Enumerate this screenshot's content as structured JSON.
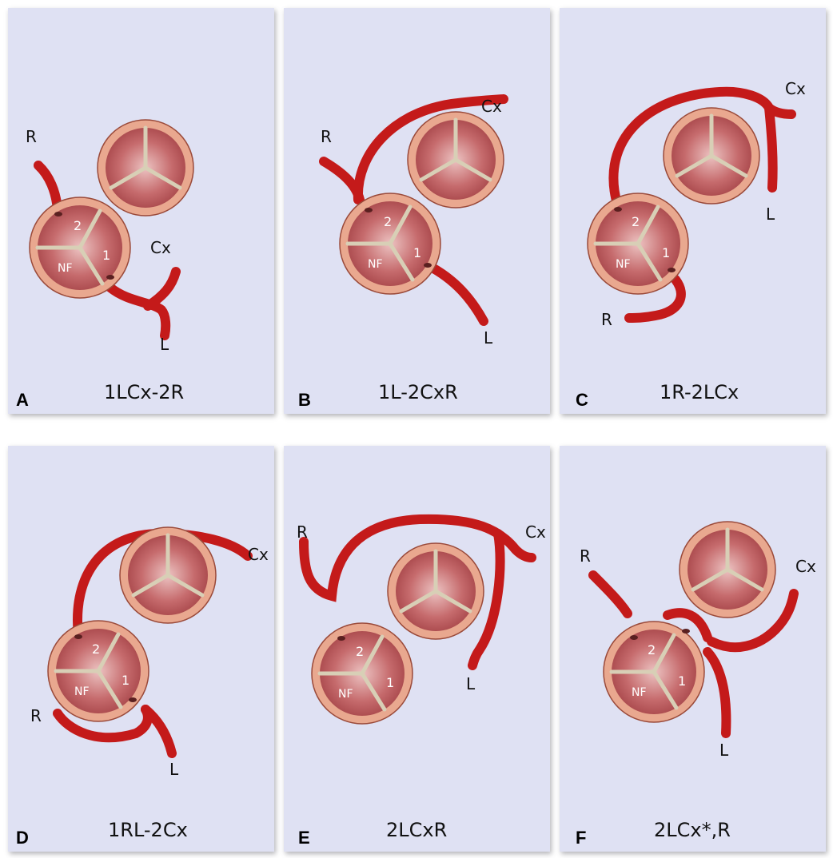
{
  "colors": {
    "panel_bg": "#dfe1f3",
    "artery": "#c41a1a",
    "annulus": "#e9a88f",
    "annulus_stroke": "#9a4a3a",
    "cusp": "#b0454a",
    "commissure": "#d8cfb6"
  },
  "panels": [
    {
      "letter": "A",
      "caption": "1LCx-2R",
      "pulmonic_labels": [
        "2",
        "NF",
        "1"
      ],
      "artery_labels": [
        "R",
        "Cx",
        "L"
      ]
    },
    {
      "letter": "B",
      "caption": "1L-2CxR",
      "pulmonic_labels": [
        "2",
        "NF",
        "1"
      ],
      "artery_labels": [
        "R",
        "Cx",
        "L"
      ]
    },
    {
      "letter": "C",
      "caption": "1R-2LCx",
      "pulmonic_labels": [
        "2",
        "NF",
        "1"
      ],
      "artery_labels": [
        "Cx",
        "L",
        "R"
      ]
    },
    {
      "letter": "D",
      "caption": "1RL-2Cx",
      "pulmonic_labels": [
        "2",
        "NF",
        "1"
      ],
      "artery_labels": [
        "Cx",
        "R",
        "L"
      ]
    },
    {
      "letter": "E",
      "caption": "2LCxR",
      "pulmonic_labels": [
        "2",
        "NF",
        "1"
      ],
      "artery_labels": [
        "R",
        "Cx",
        "L"
      ]
    },
    {
      "letter": "F",
      "caption": "2LCx*,R",
      "pulmonic_labels": [
        "2",
        "NF",
        "1"
      ],
      "artery_labels": [
        "R",
        "Cx",
        "L"
      ]
    }
  ]
}
